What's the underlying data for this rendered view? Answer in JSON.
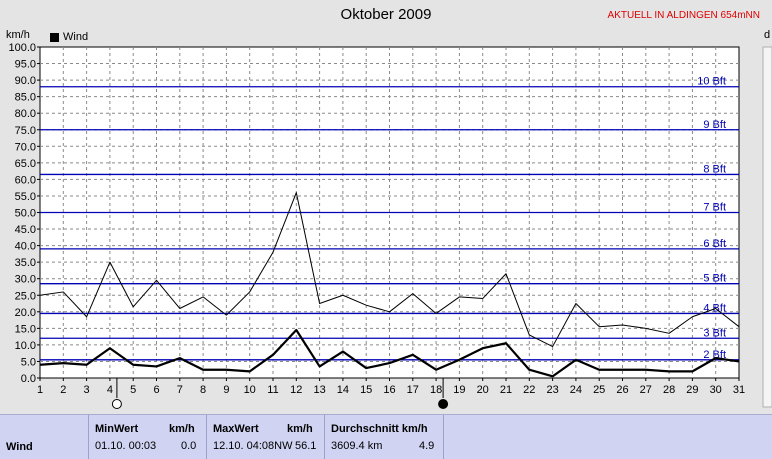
{
  "header": {
    "title": "Oktober 2009",
    "station": "AKTUELL IN ALDINGEN 654mNN",
    "unit_left": "km/h",
    "unit_right": "d"
  },
  "chart_data": {
    "type": "line",
    "title": "Oktober 2009",
    "ylabel": "km/h",
    "ylim": [
      0,
      100
    ],
    "yticks": [
      "0.0",
      "5.0",
      "10.0",
      "15.0",
      "20.0",
      "25.0",
      "30.0",
      "35.0",
      "40.0",
      "45.0",
      "50.0",
      "55.0",
      "60.0",
      "65.0",
      "70.0",
      "75.0",
      "80.0",
      "85.0",
      "90.0",
      "95.0",
      "100.0"
    ],
    "x": [
      1,
      2,
      3,
      4,
      5,
      6,
      7,
      8,
      9,
      10,
      11,
      12,
      13,
      14,
      15,
      16,
      17,
      18,
      19,
      20,
      21,
      22,
      23,
      24,
      25,
      26,
      27,
      28,
      29,
      30,
      31
    ],
    "legend": [
      "Wind"
    ],
    "series": [
      {
        "name": "Wind",
        "role": "gust",
        "color": "#000000",
        "values": [
          25,
          26,
          18.5,
          35,
          21.5,
          29.5,
          21,
          24.5,
          19,
          26,
          38,
          56,
          22.5,
          25,
          22,
          20,
          25.5,
          19.5,
          24.5,
          24,
          31.5,
          13,
          9.5,
          22.5,
          15.5,
          16,
          15,
          13.5,
          18.5,
          21,
          15.5
        ]
      },
      {
        "name": "Wind",
        "role": "average",
        "color": "#000000",
        "values": [
          4,
          4.5,
          4,
          9,
          4,
          3.5,
          6,
          2.5,
          2.5,
          2,
          7,
          14.5,
          3.5,
          8,
          3,
          4.5,
          7,
          2.5,
          5.5,
          9,
          10.5,
          2.5,
          0.5,
          5.5,
          2.5,
          2.5,
          2.5,
          2,
          2,
          6,
          5
        ]
      }
    ],
    "beaufort": [
      {
        "label": "2 Bft",
        "value": 5.5
      },
      {
        "label": "3 Bft",
        "value": 12
      },
      {
        "label": "4 Bft",
        "value": 19.5
      },
      {
        "label": "5 Bft",
        "value": 28.5
      },
      {
        "label": "6 Bft",
        "value": 39
      },
      {
        "label": "7 Bft",
        "value": 50
      },
      {
        "label": "8 Bft",
        "value": 61.5
      },
      {
        "label": "9 Bft",
        "value": 75
      },
      {
        "label": "10 Bft",
        "value": 88
      }
    ],
    "moon_markers": [
      {
        "day": 4,
        "phase": "full-moon"
      },
      {
        "day": 18,
        "phase": "new-moon"
      }
    ],
    "grid": true,
    "legend_position": "top-left"
  },
  "stats": {
    "row_label": "Wind",
    "min": {
      "header": "MinWert",
      "unit": "km/h",
      "time": "01.10.  00:03",
      "value": "0.0"
    },
    "max": {
      "header": "MaxWert",
      "unit": "km/h",
      "time": "12.10.  04:08NW",
      "value": "56.1"
    },
    "avg": {
      "header": "Durchschnitt km/h",
      "distance": "3609.4 km",
      "value": "4.9"
    }
  }
}
